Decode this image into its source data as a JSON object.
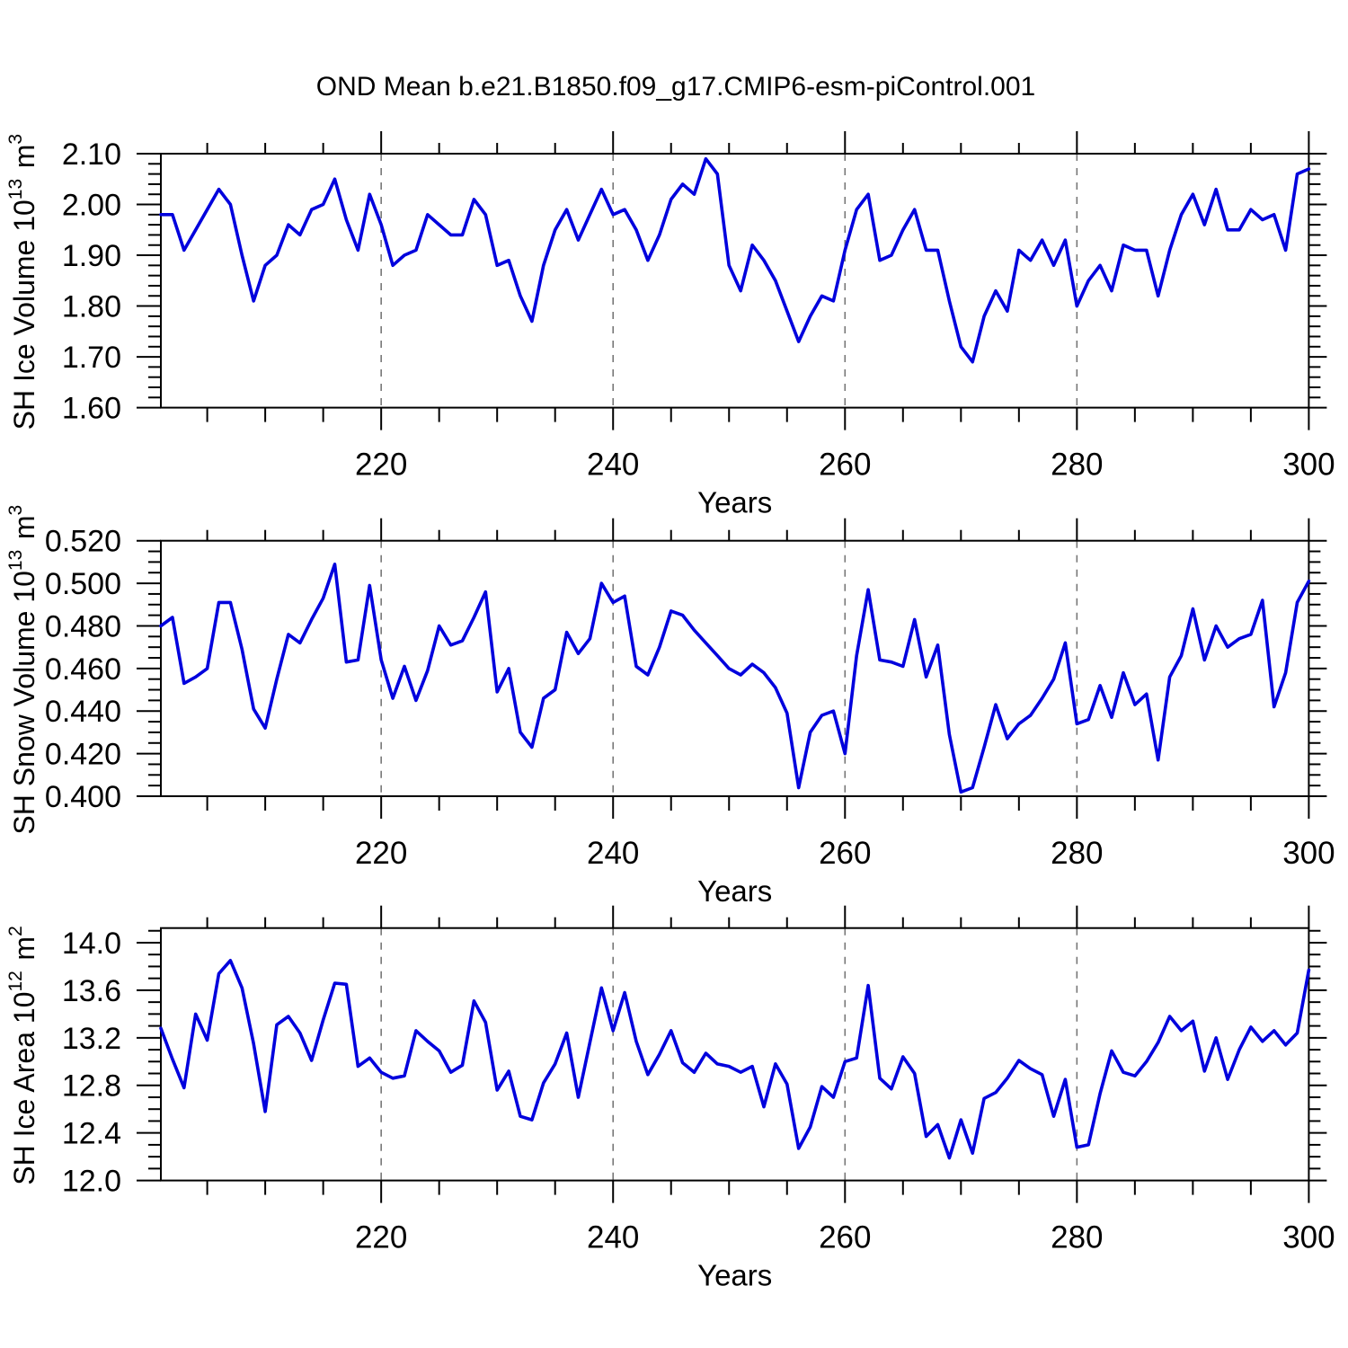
{
  "title": "OND Mean b.e21.B1850.f09_g17.CMIP6-esm-piControl.001",
  "colors": {
    "line": "#0000dd",
    "frame": "#000000",
    "grid": "#777777"
  },
  "x_axis": {
    "label": "Years",
    "start": 201,
    "end": 300,
    "major_ticks": [
      220,
      240,
      260,
      280,
      300
    ],
    "minor_step": 5,
    "gridlines": [
      220,
      240,
      260,
      280
    ]
  },
  "chart_data": [
    {
      "type": "line",
      "name": "ice-volume",
      "ylabel": "SH Ice Volume 10^13 m^3",
      "ylabel_parts": [
        {
          "t": "SH Ice Volume 10"
        },
        {
          "t": "13",
          "sup": true
        },
        {
          "t": " m"
        },
        {
          "t": "3",
          "sup": true
        }
      ],
      "xlabel": "Years",
      "xlim": [
        201,
        300
      ],
      "ylim": [
        1.6,
        2.1
      ],
      "yticks": [
        2.1,
        2.0,
        1.9,
        1.8,
        1.7,
        1.6
      ],
      "ytick_labels": [
        "2.10",
        "2.00",
        "1.90",
        "1.80",
        "1.70",
        "1.60"
      ],
      "ytick_minor_step": 0.02,
      "xticks": [
        220,
        240,
        260,
        280,
        300
      ],
      "xtick_minor_step": 5,
      "gridlines": [
        220,
        240,
        260,
        280
      ],
      "x_start": 201,
      "values": [
        1.98,
        1.98,
        1.91,
        1.95,
        1.99,
        2.03,
        2.0,
        1.9,
        1.81,
        1.88,
        1.9,
        1.96,
        1.94,
        1.99,
        2.0,
        2.05,
        1.97,
        1.91,
        2.02,
        1.96,
        1.88,
        1.9,
        1.91,
        1.98,
        1.96,
        1.94,
        1.94,
        2.01,
        1.98,
        1.88,
        1.89,
        1.82,
        1.77,
        1.88,
        1.95,
        1.99,
        1.93,
        1.98,
        2.03,
        1.98,
        1.99,
        1.95,
        1.89,
        1.94,
        2.01,
        2.04,
        2.02,
        2.09,
        2.06,
        1.88,
        1.83,
        1.92,
        1.89,
        1.85,
        1.79,
        1.73,
        1.78,
        1.82,
        1.81,
        1.91,
        1.99,
        2.02,
        1.89,
        1.9,
        1.95,
        1.99,
        1.91,
        1.91,
        1.81,
        1.72,
        1.69,
        1.78,
        1.83,
        1.79,
        1.91,
        1.89,
        1.93,
        1.88,
        1.93,
        1.8,
        1.85,
        1.88,
        1.83,
        1.92,
        1.91,
        1.91,
        1.82,
        1.91,
        1.98,
        2.02,
        1.96,
        2.03,
        1.95,
        1.95,
        1.99,
        1.97,
        1.98,
        1.91,
        2.06,
        2.07
      ]
    },
    {
      "type": "line",
      "name": "snow-volume",
      "ylabel": "SH Snow Volume 10^13 m^3",
      "ylabel_parts": [
        {
          "t": "SH Snow Volume 10"
        },
        {
          "t": "13",
          "sup": true
        },
        {
          "t": " m"
        },
        {
          "t": "3",
          "sup": true
        }
      ],
      "xlabel": "Years",
      "xlim": [
        201,
        300
      ],
      "ylim": [
        0.4,
        0.52
      ],
      "yticks": [
        0.52,
        0.5,
        0.48,
        0.46,
        0.44,
        0.42,
        0.4
      ],
      "ytick_labels": [
        "0.520",
        "0.500",
        "0.480",
        "0.460",
        "0.440",
        "0.420",
        "0.400"
      ],
      "ytick_minor_step": 0.005,
      "xticks": [
        220,
        240,
        260,
        280,
        300
      ],
      "xtick_minor_step": 5,
      "gridlines": [
        220,
        240,
        260,
        280
      ],
      "x_start": 201,
      "values": [
        0.48,
        0.484,
        0.453,
        0.456,
        0.46,
        0.491,
        0.491,
        0.469,
        0.441,
        0.432,
        0.455,
        0.476,
        0.472,
        0.483,
        0.493,
        0.509,
        0.463,
        0.464,
        0.499,
        0.464,
        0.446,
        0.461,
        0.445,
        0.459,
        0.48,
        0.471,
        0.473,
        0.484,
        0.496,
        0.449,
        0.46,
        0.43,
        0.423,
        0.446,
        0.45,
        0.477,
        0.467,
        0.474,
        0.5,
        0.491,
        0.494,
        0.461,
        0.457,
        0.47,
        0.487,
        0.485,
        0.478,
        0.472,
        0.466,
        0.46,
        0.457,
        0.462,
        0.458,
        0.451,
        0.439,
        0.404,
        0.43,
        0.438,
        0.44,
        0.42,
        0.466,
        0.497,
        0.464,
        0.463,
        0.461,
        0.483,
        0.456,
        0.471,
        0.429,
        0.402,
        0.404,
        0.423,
        0.443,
        0.427,
        0.434,
        0.438,
        0.446,
        0.455,
        0.472,
        0.434,
        0.436,
        0.452,
        0.437,
        0.458,
        0.443,
        0.448,
        0.417,
        0.456,
        0.466,
        0.488,
        0.464,
        0.48,
        0.47,
        0.474,
        0.476,
        0.492,
        0.442,
        0.458,
        0.491,
        0.501
      ]
    },
    {
      "type": "line",
      "name": "ice-area",
      "ylabel": "SH Ice Area 10^12 m^2",
      "ylabel_parts": [
        {
          "t": "SH Ice Area 10"
        },
        {
          "t": "12",
          "sup": true
        },
        {
          "t": " m"
        },
        {
          "t": "2",
          "sup": true
        }
      ],
      "xlabel": "Years",
      "xlim": [
        201,
        300
      ],
      "ylim": [
        12.0,
        14.123
      ],
      "yticks": [
        14.0,
        13.6,
        13.2,
        12.8,
        12.4,
        12.0
      ],
      "ytick_labels": [
        "14.0",
        "13.6",
        "13.2",
        "12.8",
        "12.4",
        "12.0"
      ],
      "ytick_minor_step": 0.1,
      "xticks": [
        220,
        240,
        260,
        280,
        300
      ],
      "xtick_minor_step": 5,
      "gridlines": [
        220,
        240,
        260,
        280
      ],
      "x_start": 201,
      "values": [
        13.28,
        13.02,
        12.78,
        13.4,
        13.18,
        13.74,
        13.85,
        13.62,
        13.15,
        12.58,
        13.31,
        13.38,
        13.24,
        13.01,
        13.35,
        13.66,
        13.65,
        12.96,
        13.03,
        12.91,
        12.86,
        12.88,
        13.26,
        13.17,
        13.09,
        12.91,
        12.97,
        13.51,
        13.33,
        12.76,
        12.92,
        12.54,
        12.51,
        12.82,
        12.98,
        13.24,
        12.7,
        13.16,
        13.62,
        13.26,
        13.58,
        13.17,
        12.89,
        13.06,
        13.26,
        12.99,
        12.91,
        13.07,
        12.98,
        12.96,
        12.91,
        12.96,
        12.62,
        12.98,
        12.81,
        12.27,
        12.45,
        12.79,
        12.7,
        13.0,
        13.03,
        13.64,
        12.86,
        12.77,
        13.04,
        12.9,
        12.37,
        12.47,
        12.19,
        12.51,
        12.23,
        12.69,
        12.74,
        12.86,
        13.01,
        12.94,
        12.89,
        12.54,
        12.85,
        12.28,
        12.3,
        12.73,
        13.09,
        12.91,
        12.88,
        13.0,
        13.16,
        13.38,
        13.26,
        13.34,
        12.92,
        13.2,
        12.85,
        13.1,
        13.29,
        13.17,
        13.26,
        13.14,
        13.24,
        13.77
      ]
    }
  ]
}
